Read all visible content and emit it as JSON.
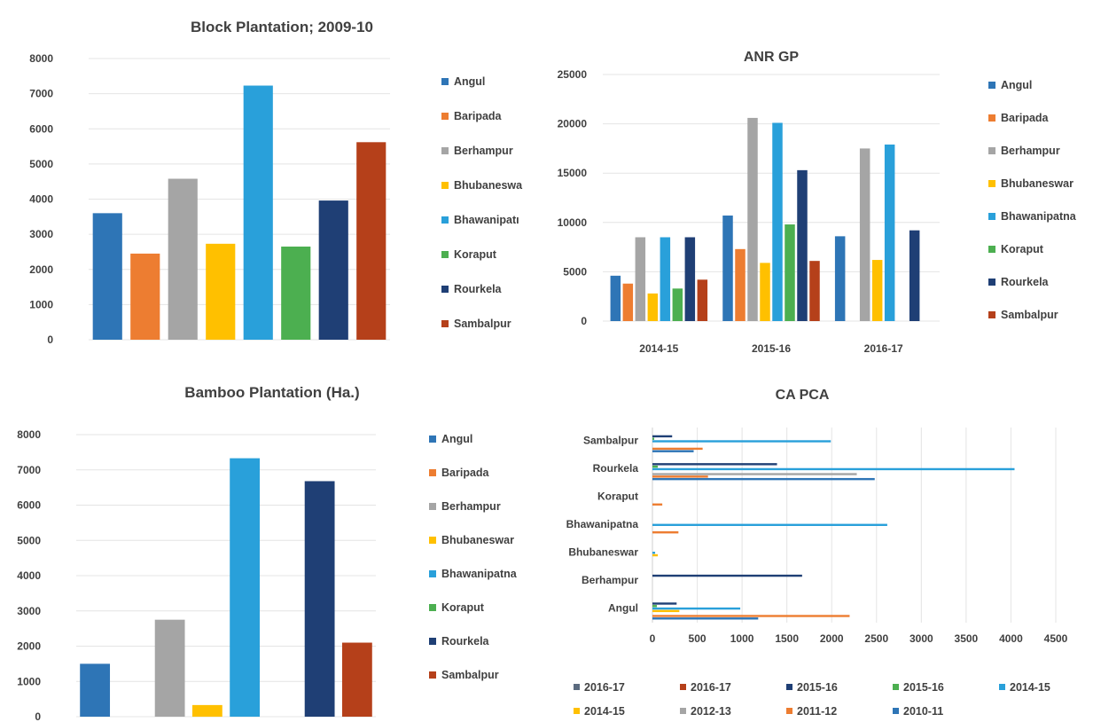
{
  "chart_data": [
    {
      "id": "block",
      "type": "bar",
      "title": "Block Plantation; 2009-10",
      "ylim": [
        0,
        8000
      ],
      "yticks": [
        0,
        1000,
        2000,
        3000,
        4000,
        5000,
        6000,
        7000,
        8000
      ],
      "legend_position": "right",
      "legend": [
        "Angul",
        "Baripada",
        "Berhampur",
        "Bhubaneswa",
        "Bhawanipatı",
        "Koraput",
        "Rourkela",
        "Sambalpur"
      ],
      "colors": [
        "#2E75B6",
        "#ED7D31",
        "#A5A5A5",
        "#FFC000",
        "#29A0DA",
        "#4CAF50",
        "#1F3F75",
        "#B5401A"
      ],
      "values": [
        3600,
        2450,
        4580,
        2730,
        7230,
        2650,
        3960,
        5620
      ]
    },
    {
      "id": "anr",
      "type": "bar",
      "title": "ANR GP",
      "ylim": [
        0,
        25000
      ],
      "yticks": [
        0,
        5000,
        10000,
        15000,
        20000,
        25000
      ],
      "legend_position": "right",
      "categories": [
        "2014-15",
        "2015-16",
        "2016-17"
      ],
      "legend": [
        "Angul",
        "Baripada",
        "Berhampur",
        "Bhubaneswar",
        "Bhawanipatna",
        "Koraput",
        "Rourkela",
        "Sambalpur"
      ],
      "colors": [
        "#2E75B6",
        "#ED7D31",
        "#A5A5A5",
        "#FFC000",
        "#29A0DA",
        "#4CAF50",
        "#1F3F75",
        "#B5401A"
      ],
      "series": [
        {
          "name": "Angul",
          "values": [
            4600,
            10700,
            8600
          ]
        },
        {
          "name": "Baripada",
          "values": [
            3800,
            7300,
            0
          ]
        },
        {
          "name": "Berhampur",
          "values": [
            8500,
            20600,
            17500
          ]
        },
        {
          "name": "Bhubaneswar",
          "values": [
            2800,
            5900,
            6200
          ]
        },
        {
          "name": "Bhawanipatna",
          "values": [
            8500,
            20100,
            17900
          ]
        },
        {
          "name": "Koraput",
          "values": [
            3300,
            9800,
            0
          ]
        },
        {
          "name": "Rourkela",
          "values": [
            8500,
            15300,
            9200
          ]
        },
        {
          "name": "Sambalpur",
          "values": [
            4200,
            6100,
            0
          ]
        }
      ]
    },
    {
      "id": "bamboo",
      "type": "bar",
      "title": "Bamboo Plantation (Ha.)",
      "ylim": [
        0,
        8000
      ],
      "yticks": [
        0,
        1000,
        2000,
        3000,
        4000,
        5000,
        6000,
        7000,
        8000
      ],
      "legend_position": "right",
      "legend": [
        "Angul",
        "Baripada",
        "Berhampur",
        "Bhubaneswar",
        "Bhawanipatna",
        "Koraput",
        "Rourkela",
        "Sambalpur"
      ],
      "colors": [
        "#2E75B6",
        "#ED7D31",
        "#A5A5A5",
        "#FFC000",
        "#29A0DA",
        "#4CAF50",
        "#1F3F75",
        "#B5401A"
      ],
      "values": [
        1500,
        0,
        2750,
        330,
        7330,
        0,
        6680,
        2100
      ]
    },
    {
      "id": "capca",
      "type": "bar",
      "orientation": "horizontal",
      "title": "CA PCA",
      "xlim": [
        0,
        4500
      ],
      "xticks": [
        0,
        500,
        1000,
        1500,
        2000,
        2500,
        3000,
        3500,
        4000,
        4500
      ],
      "legend_position": "bottom",
      "categories": [
        "Angul",
        "Berhampur",
        "Bhubaneswar",
        "Bhawanipatna",
        "Koraput",
        "Rourkela",
        "Sambalpur"
      ],
      "category_labels": [
        "Angul",
        "Berhampur",
        "Bhubaneswar",
        "Bhawanipatna",
        "Koraput",
        "Rourkela",
        "Sambalpur"
      ],
      "legend": [
        "2016-17",
        "2016-17",
        "2015-16",
        "2015-16",
        "2014-15",
        "2014-15",
        "2012-13",
        "2011-12",
        "2010-11"
      ],
      "colors": [
        "#5B6B7F",
        "#B5401A",
        "#1F3F75",
        "#4CAF50",
        "#29A0DA",
        "#FFC000",
        "#A5A5A5",
        "#ED7D31",
        "#2E75B6"
      ],
      "series": [
        {
          "name": "2016-17",
          "values": [
            0,
            0,
            0,
            0,
            0,
            0,
            0
          ]
        },
        {
          "name": "2016-17",
          "values": [
            0,
            0,
            0,
            0,
            0,
            0,
            0
          ]
        },
        {
          "name": "2015-16",
          "values": [
            270,
            1670,
            0,
            0,
            0,
            1390,
            220
          ]
        },
        {
          "name": "2015-16",
          "values": [
            50,
            0,
            0,
            0,
            0,
            60,
            20
          ]
        },
        {
          "name": "2014-15",
          "values": [
            980,
            0,
            30,
            2620,
            0,
            4040,
            1990
          ]
        },
        {
          "name": "2014-15",
          "values": [
            300,
            0,
            60,
            0,
            0,
            0,
            0
          ]
        },
        {
          "name": "2012-13",
          "values": [
            0,
            0,
            0,
            0,
            0,
            2280,
            0
          ]
        },
        {
          "name": "2011-12",
          "values": [
            2200,
            0,
            0,
            290,
            110,
            620,
            560
          ]
        },
        {
          "name": "2010-11",
          "values": [
            1180,
            0,
            0,
            0,
            0,
            2480,
            460
          ]
        }
      ]
    }
  ]
}
